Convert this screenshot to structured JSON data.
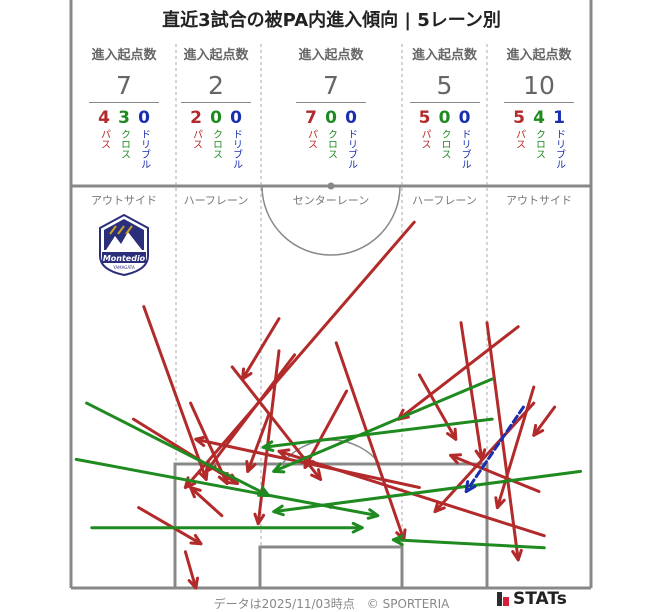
{
  "title": "直近3試合の被PA内進入傾向 | 5レーン別",
  "lane_header_label": "進入起点数",
  "lanes": [
    {
      "name": "アウトサイド",
      "total": "7",
      "pass": "4",
      "cross": "3",
      "dribble": "0"
    },
    {
      "name": "ハーフレーン",
      "total": "2",
      "pass": "2",
      "cross": "0",
      "dribble": "0"
    },
    {
      "name": "センターレーン",
      "total": "7",
      "pass": "7",
      "cross": "0",
      "dribble": "0"
    },
    {
      "name": "ハーフレーン",
      "total": "5",
      "pass": "5",
      "cross": "0",
      "dribble": "0"
    },
    {
      "name": "アウトサイド",
      "total": "10",
      "pass": "5",
      "cross": "4",
      "dribble": "1"
    }
  ],
  "type_labels": {
    "pass": "パス",
    "cross": "クロス",
    "dribble": "ドリブル"
  },
  "colors": {
    "pass": "#b22a2a",
    "cross": "#1f8a1f",
    "dribble": "#1a2fb0",
    "pitch_line": "#888888",
    "lane_divider": "#aaaaaa"
  },
  "team_logo": {
    "text": "Montedio",
    "subtext": "YAMAGATA"
  },
  "footer": "データは2025/11/03時点　© SPORTERIA",
  "brand": "STATs",
  "chart_data": {
    "type": "scatter",
    "title": "直近3試合の被PA内進入傾向 | 5レーン別",
    "x_range": [
      0,
      100
    ],
    "y_range": [
      0,
      100
    ],
    "x_meaning": "pitch width (left to right, 0-100)",
    "y_meaning": "distance from own goal line (0-100 of shown area)",
    "series": [
      {
        "name": "パス",
        "arrows": [
          [
            66,
            91,
            22,
            25
          ],
          [
            14,
            70,
            26,
            27
          ],
          [
            43,
            58,
            26,
            29
          ],
          [
            40,
            59,
            36,
            16
          ],
          [
            51,
            61,
            64,
            12
          ],
          [
            53,
            49,
            45,
            30
          ],
          [
            31,
            55,
            48,
            27
          ],
          [
            75,
            66,
            79,
            32
          ],
          [
            80,
            66,
            86,
            7
          ],
          [
            89,
            46,
            70,
            19
          ],
          [
            89,
            50,
            82,
            20
          ],
          [
            86,
            65,
            63,
            42
          ],
          [
            23,
            46,
            30,
            26
          ],
          [
            90,
            24,
            73,
            33
          ],
          [
            93,
            45,
            89,
            38
          ],
          [
            67,
            53,
            74,
            37
          ],
          [
            12,
            42,
            32,
            26
          ],
          [
            13,
            20,
            25,
            11
          ],
          [
            29,
            18,
            23,
            25
          ],
          [
            91,
            13,
            40,
            34
          ],
          [
            38,
            43,
            34,
            29
          ],
          [
            22,
            9,
            24,
            0
          ],
          [
            40,
            67,
            33,
            52
          ],
          [
            67,
            25,
            24,
            37
          ]
        ]
      },
      {
        "name": "クロス",
        "arrows": [
          [
            3,
            46,
            38,
            23
          ],
          [
            1,
            32,
            59,
            18
          ],
          [
            4,
            15,
            56,
            15
          ],
          [
            81,
            42,
            37,
            35
          ],
          [
            81,
            52,
            39,
            29
          ],
          [
            98,
            29,
            39,
            19
          ],
          [
            91,
            10,
            62,
            12
          ]
        ]
      },
      {
        "name": "ドリブル",
        "arrows": [
          [
            87,
            45,
            76,
            24
          ]
        ]
      }
    ]
  }
}
